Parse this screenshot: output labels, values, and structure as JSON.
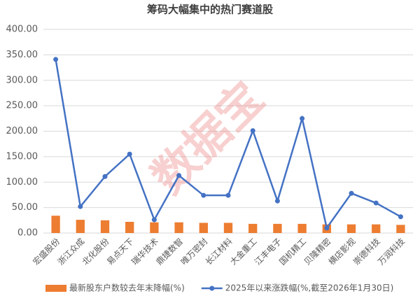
{
  "chart_data": {
    "type": "bar-line",
    "title": "筹码大幅集中的热门赛道股",
    "watermark": "数据宝",
    "categories": [
      "宏盛股份",
      "浙江众成",
      "北化股份",
      "易点天下",
      "瑞华技术",
      "鼎捷数智",
      "唯万密封",
      "长江材料",
      "大金重工",
      "江丰电子",
      "国机精工",
      "贝隆精密",
      "横店影视",
      "崇德科技",
      "万润科技"
    ],
    "series": [
      {
        "name": "最新股东户数较去年末降幅(%)",
        "type": "bar",
        "color": "#ed7d31",
        "values": [
          34,
          26,
          25,
          22,
          21,
          21,
          20,
          20,
          18,
          18,
          18,
          17,
          17,
          17,
          16
        ]
      },
      {
        "name": "2025年以来涨跌幅(%,截至2026年1月30日)",
        "type": "line",
        "color": "#4472c4",
        "values": [
          341,
          52,
          111,
          155,
          26,
          113,
          74,
          74,
          201,
          63,
          225,
          10,
          78,
          59,
          32
        ]
      }
    ],
    "ylim": [
      0,
      400
    ],
    "yticks": [
      {
        "value": 0,
        "label": "0.00"
      },
      {
        "value": 50,
        "label": "50.00"
      },
      {
        "value": 100,
        "label": "100.00"
      },
      {
        "value": 150,
        "label": "150.00"
      },
      {
        "value": 200,
        "label": "200.00"
      },
      {
        "value": 250,
        "label": "250.00"
      },
      {
        "value": 300,
        "label": "300.00"
      },
      {
        "value": 350,
        "label": "350.00"
      },
      {
        "value": 400,
        "label": "400.00"
      }
    ],
    "grid": true,
    "legend": "bottom"
  }
}
